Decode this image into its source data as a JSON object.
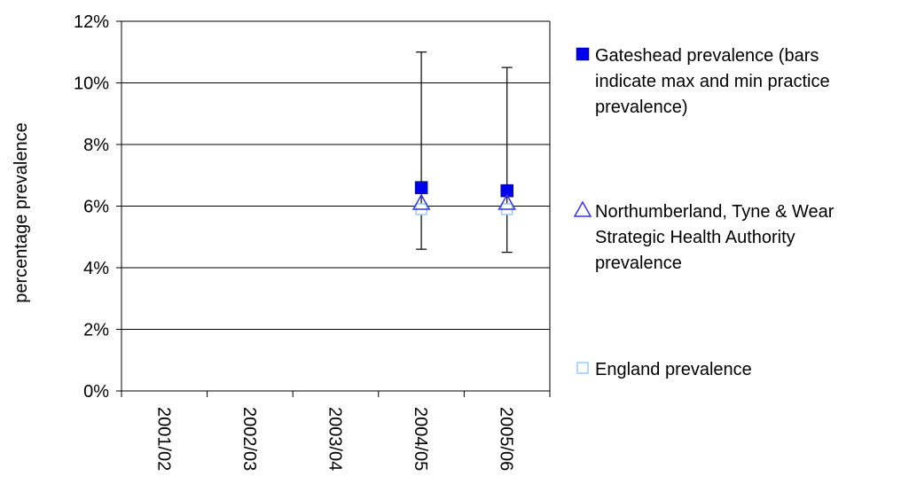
{
  "chart_data": {
    "type": "scatter",
    "categories": [
      "2001/02",
      "2002/03",
      "2003/04",
      "2004/05",
      "2005/06"
    ],
    "ylabel": "percentage prevalence",
    "xlabel": "",
    "ylim": [
      0,
      12
    ],
    "yticks": [
      "0%",
      "2%",
      "4%",
      "6%",
      "8%",
      "10%",
      "12%"
    ],
    "grid": true,
    "legend_position": "right",
    "series": [
      {
        "name": "Gateshead  prevalence (bars indicate max and min practice prevalence)",
        "legend_lines": [
          "Gateshead  prevalence (bars",
          "indicate max and min practice",
          "prevalence)"
        ],
        "marker": "square-filled",
        "color": "#0000ee",
        "values": [
          null,
          null,
          null,
          6.6,
          6.5
        ],
        "error_max": [
          null,
          null,
          null,
          11.0,
          10.5
        ],
        "error_min": [
          null,
          null,
          null,
          4.6,
          4.5
        ]
      },
      {
        "name": "Northumberland, Tyne & Wear Strategic Health Authority prevalence",
        "legend_lines": [
          "Northumberland, Tyne & Wear",
          "Strategic Health Authority",
          "prevalence"
        ],
        "marker": "triangle-open",
        "color": "#3333ff",
        "values": [
          null,
          null,
          null,
          6.1,
          6.1
        ]
      },
      {
        "name": "England  prevalence",
        "legend_lines": [
          "England  prevalence"
        ],
        "marker": "square-open",
        "color": "#99ccff",
        "values": [
          null,
          null,
          null,
          5.9,
          5.9
        ]
      }
    ]
  }
}
